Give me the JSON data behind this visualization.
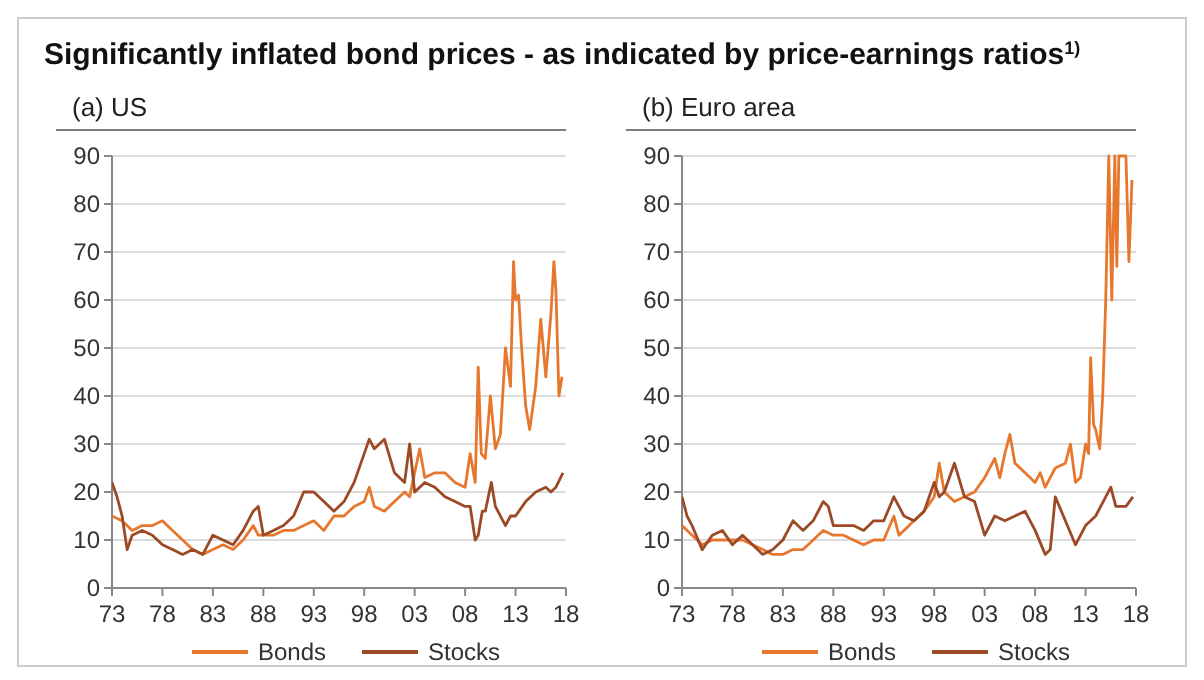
{
  "chart_data": [
    {
      "type": "line",
      "title": "Significantly inflated bond prices - as indicated by price-earnings ratios$^{1)}$",
      "subtitle": "(a) US",
      "xlim": [
        1973,
        2018
      ],
      "xticks": [
        {
          "value": 1973,
          "label": "73"
        },
        {
          "value": 1978,
          "label": "78"
        },
        {
          "value": 1983,
          "label": "83"
        },
        {
          "value": 1988,
          "label": "88"
        },
        {
          "value": 1993,
          "label": "93"
        },
        {
          "value": 1998,
          "label": "98"
        },
        {
          "value": 2003,
          "label": "03"
        },
        {
          "value": 2008,
          "label": "08"
        },
        {
          "value": 2013,
          "label": "13"
        },
        {
          "value": 2018,
          "label": "18"
        }
      ],
      "ylim": [
        0,
        90
      ],
      "yticks": [
        0,
        10,
        20,
        30,
        40,
        50,
        60,
        70,
        80,
        90
      ],
      "grid": "y",
      "legend": "bottom",
      "line_style": "solid",
      "marker": "none",
      "series": [
        {
          "name": "Bonds",
          "color": "#e8772e",
          "x": [
            1973,
            1974,
            1975,
            1976,
            1977,
            1978,
            1979,
            1980,
            1981,
            1982,
            1983,
            1984,
            1985,
            1986,
            1987,
            1987.5,
            1988,
            1989,
            1990,
            1991,
            1992,
            1993,
            1994,
            1995,
            1996,
            1997,
            1998,
            1998.5,
            1999,
            2000,
            2001,
            2002,
            2002.5,
            2003,
            2003.5,
            2004,
            2005,
            2006,
            2007,
            2008,
            2008.5,
            2009,
            2009.3,
            2009.6,
            2010,
            2010.5,
            2011,
            2011.5,
            2012,
            2012.5,
            2012.8,
            2013,
            2013.3,
            2013.6,
            2014,
            2014.4,
            2015,
            2015.5,
            2016,
            2016.5,
            2016.8,
            2017,
            2017.3,
            2017.6
          ],
          "values": [
            15,
            14,
            12,
            13,
            13,
            14,
            12,
            10,
            8,
            7,
            8,
            9,
            8,
            10,
            13,
            11,
            11,
            11,
            12,
            12,
            13,
            14,
            12,
            15,
            15,
            17,
            18,
            21,
            17,
            16,
            18,
            20,
            19,
            24,
            29,
            23,
            24,
            24,
            22,
            21,
            28,
            22,
            46,
            28,
            27,
            40,
            29,
            32,
            50,
            42,
            68,
            60,
            61,
            50,
            38,
            33,
            42,
            56,
            44,
            57,
            68,
            62,
            40,
            44
          ]
        },
        {
          "name": "Stocks",
          "color": "#9b4a25",
          "x": [
            1973,
            1973.5,
            1974,
            1974.5,
            1975,
            1976,
            1977,
            1978,
            1979,
            1980,
            1981,
            1982,
            1983,
            1984,
            1985,
            1986,
            1987,
            1987.5,
            1988,
            1989,
            1990,
            1991,
            1992,
            1993,
            1994,
            1995,
            1996,
            1997,
            1998,
            1998.5,
            1999,
            2000,
            2001,
            2002,
            2002.5,
            2003,
            2004,
            2005,
            2006,
            2007,
            2008,
            2008.5,
            2009,
            2009.3,
            2009.7,
            2010,
            2010.6,
            2011,
            2012,
            2012.5,
            2013,
            2014,
            2015,
            2016,
            2016.5,
            2017,
            2017.7
          ],
          "values": [
            22,
            19,
            15,
            8,
            11,
            12,
            11,
            9,
            8,
            7,
            8,
            7,
            11,
            10,
            9,
            12,
            16,
            17,
            11,
            12,
            13,
            15,
            20,
            20,
            18,
            16,
            18,
            22,
            28,
            31,
            29,
            31,
            24,
            22,
            30,
            20,
            22,
            21,
            19,
            18,
            17,
            17,
            10,
            11,
            16,
            16,
            22,
            17,
            13,
            15,
            15,
            18,
            20,
            21,
            20,
            21,
            24
          ]
        }
      ]
    },
    {
      "type": "line",
      "subtitle": "(b) Euro area",
      "xlim": [
        1973,
        2018
      ],
      "xticks": [
        {
          "value": 1973,
          "label": "73"
        },
        {
          "value": 1978,
          "label": "78"
        },
        {
          "value": 1983,
          "label": "83"
        },
        {
          "value": 1988,
          "label": "88"
        },
        {
          "value": 1993,
          "label": "93"
        },
        {
          "value": 1998,
          "label": "98"
        },
        {
          "value": 2003,
          "label": "03"
        },
        {
          "value": 2008,
          "label": "08"
        },
        {
          "value": 2013,
          "label": "13"
        },
        {
          "value": 2018,
          "label": "18"
        }
      ],
      "ylim": [
        0,
        90
      ],
      "yticks": [
        0,
        10,
        20,
        30,
        40,
        50,
        60,
        70,
        80,
        90
      ],
      "grid": "y",
      "legend": "bottom",
      "line_style": "solid",
      "marker": "none",
      "series": [
        {
          "name": "Bonds",
          "color": "#e8772e",
          "x": [
            1973,
            1974,
            1975,
            1976,
            1977,
            1978,
            1979,
            1980,
            1981,
            1982,
            1983,
            1984,
            1985,
            1986,
            1987,
            1988,
            1989,
            1990,
            1991,
            1992,
            1993,
            1994,
            1994.5,
            1995,
            1996,
            1997,
            1998,
            1998.5,
            1999,
            2000,
            2001,
            2002,
            2003,
            2004,
            2004.5,
            2005,
            2005.5,
            2006,
            2007,
            2008,
            2008.5,
            2009,
            2010,
            2011,
            2011.5,
            2012,
            2012.5,
            2013,
            2013.3,
            2013.5,
            2013.8,
            2014,
            2014.4,
            2014.7,
            2015,
            2015.3,
            2015.6,
            2015.9,
            2016.1,
            2016.3,
            2016.7,
            2017,
            2017.3,
            2017.6
          ],
          "values": [
            13,
            11,
            9,
            10,
            10,
            10,
            10,
            9,
            8,
            7,
            7,
            8,
            8,
            10,
            12,
            11,
            11,
            10,
            9,
            10,
            10,
            15,
            11,
            12,
            14,
            16,
            19,
            26,
            20,
            18,
            19,
            20,
            23,
            27,
            23,
            28,
            32,
            26,
            24,
            22,
            24,
            21,
            25,
            26,
            30,
            22,
            23,
            30,
            28,
            48,
            34,
            33,
            29,
            40,
            60,
            90,
            60,
            90,
            67,
            90,
            90,
            90,
            68,
            85
          ]
        },
        {
          "name": "Stocks",
          "color": "#9b4a25",
          "x": [
            1973,
            1973.5,
            1974,
            1975,
            1976,
            1977,
            1978,
            1979,
            1980,
            1981,
            1982,
            1983,
            1984,
            1985,
            1986,
            1987,
            1987.5,
            1988,
            1989,
            1990,
            1991,
            1992,
            1993,
            1994,
            1995,
            1996,
            1997,
            1998,
            1998.5,
            1999,
            2000,
            2001,
            2002,
            2003,
            2004,
            2005,
            2006,
            2007,
            2008,
            2009,
            2009.5,
            2010,
            2011,
            2012,
            2013,
            2014,
            2015,
            2015.5,
            2016,
            2017,
            2017.7
          ],
          "values": [
            19,
            15,
            13,
            8,
            11,
            12,
            9,
            11,
            9,
            7,
            8,
            10,
            14,
            12,
            14,
            18,
            17,
            13,
            13,
            13,
            12,
            14,
            14,
            19,
            15,
            14,
            16,
            22,
            19,
            20,
            26,
            19,
            18,
            11,
            15,
            14,
            15,
            16,
            12,
            7,
            8,
            19,
            14,
            9,
            13,
            15,
            19,
            21,
            17,
            17,
            19
          ]
        }
      ]
    }
  ]
}
